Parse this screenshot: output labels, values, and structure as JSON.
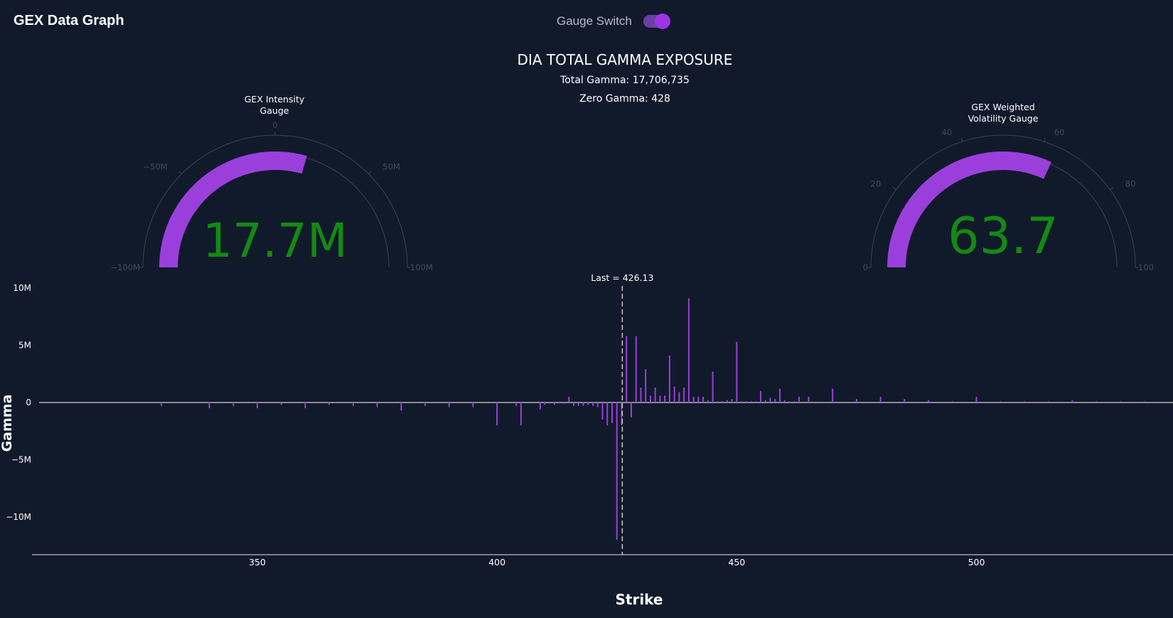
{
  "header": {
    "app_title": "GEX Data Graph",
    "switch_label": "Gauge Switch",
    "switch_on": true
  },
  "figure": {
    "title": "DIA TOTAL GAMMA EXPOSURE",
    "total_gamma_line": "Total Gamma: 17,706,735",
    "zero_gamma_line": "Zero Gamma: 428"
  },
  "colors": {
    "background": "#111a2b",
    "bar": "#9b3fdc",
    "gauge_value": "#138a13",
    "gauge_arc": "#9b3fdc"
  },
  "gauges": [
    {
      "title_line1": "GEX Intensity",
      "title_line2": "Gauge",
      "value_text": "17.7M",
      "value": 17706735,
      "range": [
        -100000000,
        100000000
      ],
      "tick_values": [
        -100000000,
        -50000000,
        0,
        50000000,
        100000000
      ],
      "tick_labels": [
        "−100M",
        "−50M",
        "0",
        "50M",
        "100M"
      ]
    },
    {
      "title_line1": "GEX Weighted",
      "title_line2": "Volatility Gauge",
      "value_text": "63.7",
      "value": 63.7,
      "range": [
        0,
        100
      ],
      "tick_values": [
        0,
        20,
        40,
        60,
        80,
        100
      ],
      "tick_labels": [
        "0",
        "20",
        "40",
        "60",
        "80",
        "100"
      ]
    }
  ],
  "chart_data": {
    "type": "bar",
    "xlabel": "Strike",
    "ylabel": "Gamma",
    "xlim": [
      303,
      541
    ],
    "ylim": [
      -13300000,
      10000000
    ],
    "x_ticks": [
      350,
      400,
      450,
      500
    ],
    "x_tick_labels": [
      "350",
      "400",
      "450",
      "500"
    ],
    "y_ticks": [
      10000000,
      5000000,
      0,
      -5000000,
      -10000000
    ],
    "y_tick_labels": [
      "10M",
      "5M",
      "0",
      "−5M",
      "−10M"
    ],
    "last_price": 426.13,
    "last_label": "Last = 426.13",
    "series": [
      {
        "x": [
          330,
          340,
          345,
          350,
          355,
          360,
          365,
          370,
          375,
          380,
          385,
          390,
          395,
          400,
          404,
          405,
          409,
          410,
          411,
          412,
          413,
          414,
          415,
          416,
          417,
          418,
          419,
          420,
          421,
          422,
          423,
          424,
          425,
          426,
          427,
          428,
          429,
          430,
          431,
          432,
          433,
          434,
          435,
          436,
          437,
          438,
          439,
          440,
          441,
          442,
          443,
          444,
          445,
          446,
          447,
          448,
          449,
          450,
          451,
          452,
          453,
          454,
          455,
          456,
          457,
          458,
          459,
          460,
          461,
          462,
          463,
          465,
          470,
          475,
          480,
          485,
          490,
          495,
          500,
          505,
          510,
          515,
          520,
          525,
          530,
          535
        ],
        "values": [
          -300000,
          -500000,
          -300000,
          -500000,
          -200000,
          -500000,
          -200000,
          -300000,
          -400000,
          -700000,
          -300000,
          -400000,
          -400000,
          -2000000,
          -300000,
          -2000000,
          -600000,
          -200000,
          -100000,
          -200000,
          -100000,
          -100000,
          500000,
          -300000,
          -300000,
          -300000,
          -200000,
          -300000,
          -400000,
          -1500000,
          -2000000,
          -1800000,
          -12000000,
          -2000000,
          5800000,
          -1300000,
          5800000,
          1300000,
          2900000,
          600000,
          1300000,
          600000,
          600000,
          4100000,
          1400000,
          900000,
          1300000,
          9100000,
          500000,
          500000,
          500000,
          200000,
          2700000,
          100000,
          100000,
          200000,
          300000,
          5300000,
          100000,
          100000,
          100000,
          100000,
          1000000,
          200000,
          400000,
          300000,
          1200000,
          200000,
          100000,
          100000,
          500000,
          500000,
          1200000,
          300000,
          500000,
          300000,
          200000,
          100000,
          500000,
          100000,
          100000,
          100000,
          200000,
          100000,
          100000,
          100000
        ]
      }
    ]
  }
}
